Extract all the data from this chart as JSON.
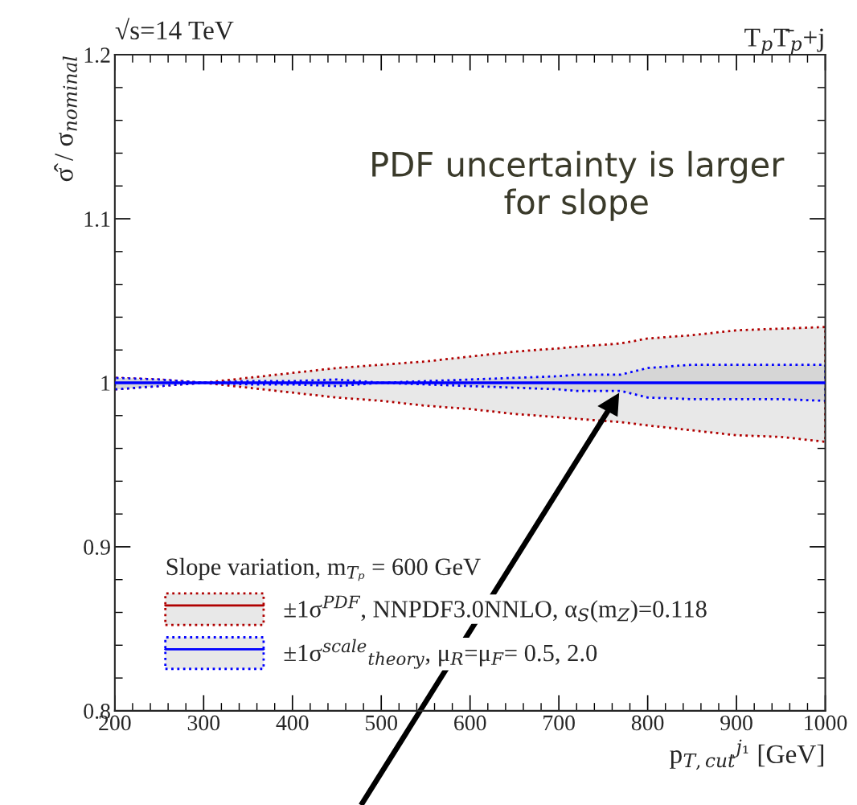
{
  "chart_data": {
    "type": "line",
    "title": "T$_{p}$T̄$_{p}$+j",
    "xlabel": "p$_{T,cut}$$^{j₁}$ [GeV]",
    "ylabel": "σ̂ / σ$_{nominal}$",
    "legend_title": "Slope variation, m$_{Tₚ}$ = 600 GeV",
    "x": [
      200,
      250,
      300,
      350,
      400,
      450,
      500,
      550,
      600,
      650,
      700,
      720,
      770,
      800,
      850,
      900,
      950,
      1000
    ],
    "series": [
      {
        "name": "±1σ$^{PDF}$, NNPDF3.0NNLO, α$_{S}$(m$_{Z}$)=0.118",
        "color": "#b00000",
        "values": [
          null,
          null,
          null,
          null,
          null,
          null,
          null,
          null,
          null,
          null,
          null,
          null,
          null,
          null,
          null,
          null,
          null,
          null
        ],
        "lower": [
          0.996,
          0.998,
          1.0,
          0.997,
          0.994,
          0.991,
          0.989,
          0.986,
          0.984,
          0.981,
          0.979,
          0.978,
          0.976,
          0.974,
          0.971,
          0.968,
          0.967,
          0.964
        ],
        "upper": [
          1.003,
          1.002,
          1.0,
          1.003,
          1.006,
          1.009,
          1.011,
          1.013,
          1.016,
          1.019,
          1.021,
          1.022,
          1.024,
          1.027,
          1.029,
          1.032,
          1.033,
          1.034
        ]
      },
      {
        "name": "±1σ$^{scale}$$_{theory}$, μ$_{R}$=μ$_{F}$= 0.5, 2.0",
        "color": "#0000ff",
        "values": [
          1,
          1,
          1,
          1,
          1,
          1,
          1,
          1,
          1,
          1,
          1,
          1,
          1,
          1,
          1,
          1,
          1,
          1
        ],
        "lower": [
          0.996,
          0.998,
          1.0,
          0.999,
          0.999,
          0.998,
          1.0,
          0.999,
          0.998,
          0.997,
          0.996,
          0.995,
          0.995,
          0.991,
          0.99,
          0.99,
          0.99,
          0.989
        ],
        "upper": [
          1.003,
          1.002,
          1.0,
          1.001,
          1.001,
          1.002,
          1.0,
          1.001,
          1.002,
          1.003,
          1.004,
          1.005,
          1.005,
          1.009,
          1.011,
          1.011,
          1.011,
          1.011
        ]
      }
    ],
    "xlim": [
      200,
      1000
    ],
    "ylim": [
      0.8,
      1.2
    ],
    "xticks": [
      200,
      300,
      400,
      500,
      600,
      700,
      800,
      900,
      1000
    ],
    "yticks": [
      0.8,
      0.9,
      1,
      1.1,
      1.2
    ],
    "legend": "bottom left",
    "grid": false,
    "line_style": "solid",
    "marker": "none",
    "annotations": [
      "√s=14 TeV",
      "PDF uncertainty is larger\nfor slope"
    ]
  }
}
